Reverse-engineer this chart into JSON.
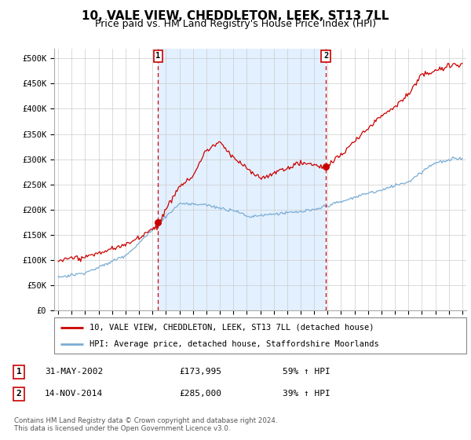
{
  "title": "10, VALE VIEW, CHEDDLETON, LEEK, ST13 7LL",
  "subtitle": "Price paid vs. HM Land Registry's House Price Index (HPI)",
  "title_fontsize": 11,
  "subtitle_fontsize": 9,
  "ylabel_ticks": [
    "£0",
    "£50K",
    "£100K",
    "£150K",
    "£200K",
    "£250K",
    "£300K",
    "£350K",
    "£400K",
    "£450K",
    "£500K"
  ],
  "ytick_vals": [
    0,
    50000,
    100000,
    150000,
    200000,
    250000,
    300000,
    350000,
    400000,
    450000,
    500000
  ],
  "ylim": [
    0,
    520000
  ],
  "hpi_color": "#7aadd4",
  "price_color": "#cc0000",
  "shade_color": "#ddeeff",
  "marker1_year": 2002.42,
  "marker1_price": 173995,
  "marker1_label": "1",
  "marker2_year": 2014.87,
  "marker2_price": 285000,
  "marker2_label": "2",
  "legend_line1": "10, VALE VIEW, CHEDDLETON, LEEK, ST13 7LL (detached house)",
  "legend_line2": "HPI: Average price, detached house, Staffordshire Moorlands",
  "table_row1": [
    "1",
    "31-MAY-2002",
    "£173,995",
    "59% ↑ HPI"
  ],
  "table_row2": [
    "2",
    "14-NOV-2014",
    "£285,000",
    "39% ↑ HPI"
  ],
  "footer": "Contains HM Land Registry data © Crown copyright and database right 2024.\nThis data is licensed under the Open Government Licence v3.0.",
  "bg_color": "#ffffff",
  "grid_color": "#cccccc"
}
